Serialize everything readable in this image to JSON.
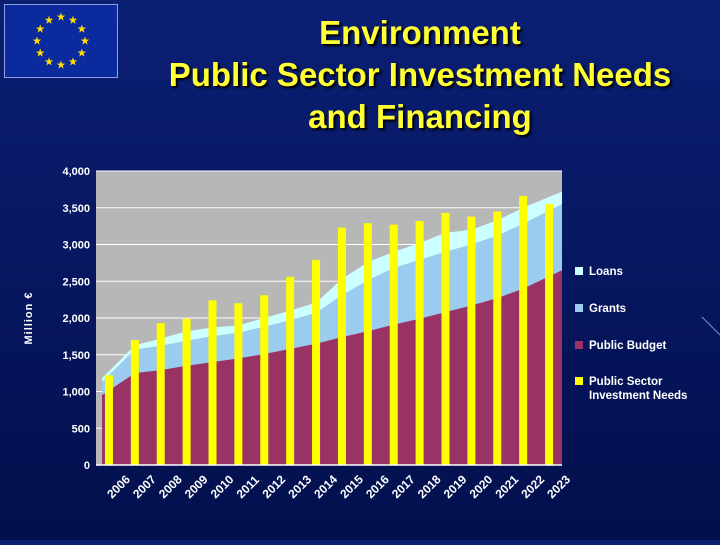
{
  "slide": {
    "title_line1": "Environment",
    "title_line2": "Public Sector Investment Needs",
    "title_line3": "and Financing",
    "flag_icon": "eu-flag-icon"
  },
  "colors": {
    "background": "#06165e",
    "title": "#ffff33",
    "plot_bg": "#b7b7b7",
    "loans": "#ccffff",
    "grants": "#99ccee",
    "public_budget": "#993366",
    "needs": "#ffff00"
  },
  "chart_data": {
    "type": "bar",
    "title": "",
    "xlabel": "",
    "ylabel": "Million €",
    "ylim": [
      0,
      4000
    ],
    "yticks": [
      "0",
      "500",
      "1,000",
      "1,500",
      "2,000",
      "2,500",
      "3,000",
      "3,500",
      "4,000"
    ],
    "grid": true,
    "legend_position": "right",
    "categories": [
      "2006",
      "2007",
      "2008",
      "2009",
      "2010",
      "2011",
      "2012",
      "2013",
      "2014",
      "2015",
      "2016",
      "2017",
      "2018",
      "2019",
      "2020",
      "2021",
      "2022",
      "2023"
    ],
    "series": [
      {
        "name": "Loans",
        "kind": "stacked-area",
        "values": [
          50,
          60,
          100,
          130,
          120,
          100,
          120,
          130,
          140,
          220,
          250,
          220,
          230,
          260,
          200,
          210,
          220,
          170
        ]
      },
      {
        "name": "Grants",
        "kind": "stacked-area",
        "values": [
          180,
          320,
          330,
          340,
          350,
          350,
          370,
          390,
          420,
          570,
          690,
          770,
          800,
          820,
          830,
          850,
          880,
          900
        ]
      },
      {
        "name": "Public Budget",
        "kind": "stacked-area",
        "values": [
          950,
          1250,
          1290,
          1350,
          1400,
          1450,
          1510,
          1580,
          1650,
          1740,
          1820,
          1910,
          1990,
          2080,
          2170,
          2270,
          2400,
          2650
        ]
      },
      {
        "name": "Public Sector Investment Needs",
        "kind": "bar",
        "values": [
          1220,
          1700,
          1930,
          1990,
          2240,
          2200,
          2310,
          2560,
          2790,
          3230,
          3290,
          3270,
          3320,
          3430,
          3380,
          3450,
          3660,
          3550
        ]
      }
    ],
    "legend": [
      {
        "label": "Loans",
        "color": "#ccffff"
      },
      {
        "label": "Grants",
        "color": "#99ccee"
      },
      {
        "label": "Public Budget",
        "color": "#993366"
      },
      {
        "label": "Public Sector",
        "label2": "Investment Needs",
        "color": "#ffff00"
      }
    ]
  }
}
